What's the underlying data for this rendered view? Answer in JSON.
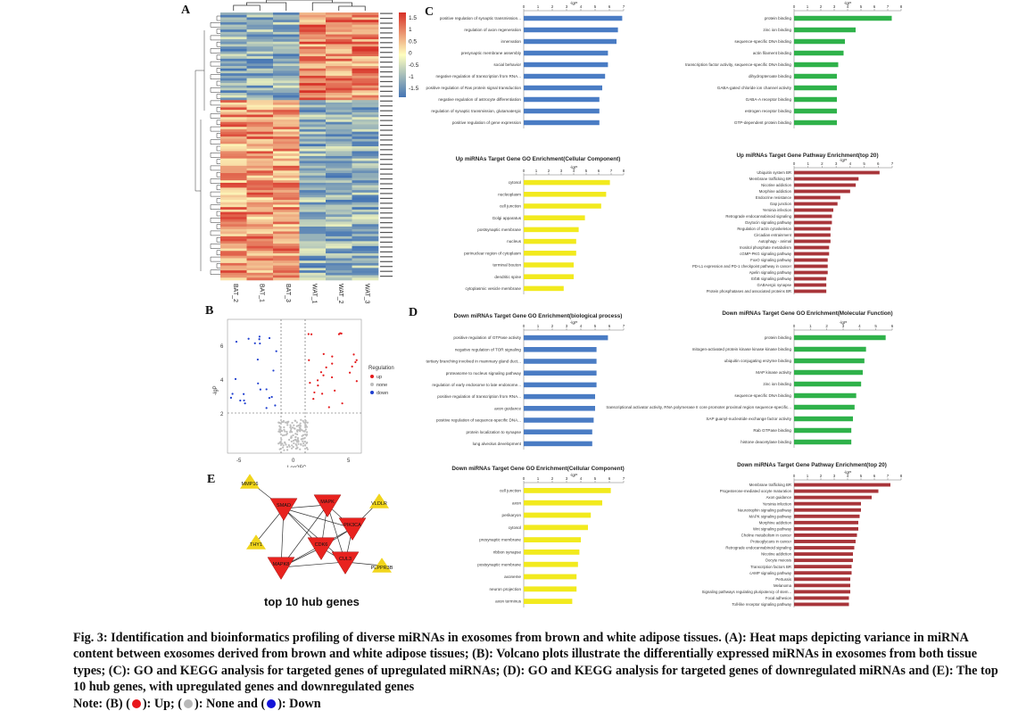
{
  "panels": {
    "A": "A",
    "B": "B",
    "C": "C",
    "D": "D",
    "E": "E"
  },
  "heatmap": {
    "samples": [
      "BAT_2",
      "BAT_1",
      "BAT_3",
      "WAT_1",
      "WAT_2",
      "WAT_3"
    ],
    "legend_ticks": [
      "1.5",
      "1",
      "0.5",
      "0",
      "-0.5",
      "-1",
      "-1.5"
    ],
    "colors": {
      "high": "#d73027",
      "mid": "#ffffbf",
      "low": "#4575b4"
    }
  },
  "volcano": {
    "xlabel": "Log2FC",
    "ylabel": "-lgP",
    "legend_title": "Regulation",
    "legend": [
      {
        "label": "up",
        "color": "#e41a1c"
      },
      {
        "label": "none",
        "color": "#bdbdbd"
      },
      {
        "label": "down",
        "color": "#1f3fcf"
      }
    ],
    "x_ticks": [
      "-5",
      "0",
      "5"
    ],
    "y_ticks": [
      "2",
      "4",
      "6"
    ]
  },
  "chart_data": [
    {
      "type": "bar",
      "orientation": "horizontal",
      "axis_label": "-lgP",
      "title": "",
      "color": "#4a7cc4",
      "xlim": [
        0,
        7
      ],
      "categories": [
        "positive regulation of synaptic transmission...",
        "regulation of axon regeneration",
        "innervation",
        "presynaptic membrane assembly",
        "social behavior",
        "negative regulation of transcription from RNA...",
        "positive regulation of Ras protein signal transduction",
        "negative regulation of astrocyte differentiation",
        "regulation of synaptic transmission, glutamatergic",
        "positive regulation of gene expression"
      ],
      "values": [
        6.9,
        6.6,
        6.5,
        5.9,
        5.9,
        5.7,
        5.5,
        5.3,
        5.3,
        5.3
      ]
    },
    {
      "type": "bar",
      "orientation": "horizontal",
      "axis_label": "-lgP",
      "title": "",
      "color": "#2fb24a",
      "xlim": [
        0,
        8
      ],
      "categories": [
        "protein binding",
        "zinc ion binding",
        "sequence-specific DNA binding",
        "actin filament binding",
        "transcription factor activity, sequence-specific DNA binding",
        "dihydropteroate binding",
        "GABA-gated chloride ion channel activity",
        "GABA-A receptor binding",
        "estrogen receptor binding",
        "GTP-dependent protein binding"
      ],
      "values": [
        7.3,
        4.6,
        3.8,
        3.7,
        3.3,
        3.2,
        3.2,
        3.2,
        3.2,
        3.2
      ]
    },
    {
      "type": "bar",
      "orientation": "horizontal",
      "axis_label": "-lgP",
      "title": "Up miRNAs Target Gene GO Enrichment(Cellular Component)",
      "color": "#f2ea1e",
      "xlim": [
        0,
        8
      ],
      "categories": [
        "cytosol",
        "nucleoplasm",
        "cell junction",
        "Golgi apparatus",
        "postsynaptic membrane",
        "nucleus",
        "perinuclear region of cytoplasm",
        "terminal bouton",
        "dendritic spine",
        "cytoplasmic vesicle membrane"
      ],
      "values": [
        6.9,
        6.6,
        6.2,
        4.9,
        4.4,
        4.2,
        4.2,
        4.0,
        4.0,
        3.2
      ]
    },
    {
      "type": "bar",
      "orientation": "horizontal",
      "axis_label": "-lgP",
      "title": "Up miRNAs Target Gene Pathway Enrichment(top 20)",
      "color": "#a8353a",
      "xlim": [
        0,
        7
      ],
      "categories": [
        "Ubiquitin system BR",
        "Membrane trafficking BR",
        "Nicotine addiction",
        "Morphine addiction",
        "Endocrine resistance",
        "Gap junction",
        "Yersinia infection",
        "Retrograde endocannabinoid signaling",
        "Oxytocin signaling pathway",
        "Regulation of actin cytoskeleton",
        "Circadian entrainment",
        "Autophagy - animal",
        "Inositol phosphate metabolism",
        "cGMP-PKG signaling pathway",
        "FoxO signaling pathway",
        "PD-L1 expression and PD-1 checkpoint pathway in cancer",
        "Apelin signaling pathway",
        "ErbB signaling pathway",
        "GABAergic synapse",
        "Protein phosphatases and associated proteins BR"
      ],
      "values": [
        6.1,
        4.6,
        4.4,
        4.0,
        3.3,
        3.1,
        2.8,
        2.7,
        2.7,
        2.6,
        2.6,
        2.6,
        2.5,
        2.5,
        2.4,
        2.4,
        2.4,
        2.3,
        2.3,
        2.3
      ]
    },
    {
      "type": "bar",
      "orientation": "horizontal",
      "axis_label": "-lgP",
      "title": "Down miRNAs Target Gene GO Enrichment(biological process)",
      "color": "#4a7cc4",
      "xlim": [
        0,
        7
      ],
      "categories": [
        "positive regulation of GTPase activity",
        "negative regulation of TOR signaling",
        "tertiary branching involved in mammary gland duct...",
        "proteasome to nucleus signaling pathway",
        "regulation of early endosome to late endosome...",
        "positive regulation of transcription from RNA...",
        "axon guidance",
        "positive regulation of sequence-specific DNA...",
        "protein localization to synapse",
        "lung alveolus development"
      ],
      "values": [
        5.9,
        5.1,
        5.1,
        5.1,
        5.1,
        5.0,
        5.0,
        4.9,
        4.8,
        4.8
      ]
    },
    {
      "type": "bar",
      "orientation": "horizontal",
      "axis_label": "-lgP",
      "title": "Down miRNAs Target Gene GO Enrichment(Molecular Function)",
      "color": "#2fb24a",
      "xlim": [
        0,
        6
      ],
      "categories": [
        "protein binding",
        "mitogen-activated protein kinase kinase kinase binding",
        "ubiquitin conjugating enzyme binding",
        "MAP kinase activity",
        "zinc ion binding",
        "sequence-specific DNA binding",
        "transcriptional activator activity, RNA polymerase II core promoter proximal region sequence-specific...",
        "SAP guanyl-nucleotide exchange factor activity",
        "Rab GTPase binding",
        "histone deacetylase binding"
      ],
      "values": [
        5.6,
        4.4,
        4.3,
        4.2,
        4.1,
        3.8,
        3.7,
        3.6,
        3.5,
        3.5
      ]
    },
    {
      "type": "bar",
      "orientation": "horizontal",
      "axis_label": "-lgP",
      "title": "Down miRNAs Target Gene GO Enrichment(Cellular Component)",
      "color": "#f2ea1e",
      "xlim": [
        0,
        7
      ],
      "categories": [
        "cell junction",
        "axon",
        "perikaryon",
        "cytosol",
        "presynaptic membrane",
        "ribbon synapse",
        "postsynaptic membrane",
        "axoneme",
        "neuron projection",
        "axon terminus"
      ],
      "values": [
        6.1,
        5.5,
        4.7,
        4.5,
        4.0,
        3.9,
        3.8,
        3.7,
        3.7,
        3.4
      ]
    },
    {
      "type": "bar",
      "orientation": "horizontal",
      "axis_label": "-lgP",
      "title": "Down miRNAs Target Gene Pathway Enrichment(top 20)",
      "color": "#a8353a",
      "xlim": [
        0,
        8
      ],
      "categories": [
        "Membrane trafficking BR",
        "Progesterone-mediated oocyte maturation",
        "Axon guidance",
        "Yersinia infection",
        "Neurotrophin signaling pathway",
        "MAPK signaling pathway",
        "Morphine addiction",
        "Wnt signaling pathway",
        "Choline metabolism in cancer",
        "Proteoglycans in cancer",
        "Retrograde endocannabinoid signaling",
        "Nicotine addiction",
        "Oocyte meiosis",
        "Transcription factors BR",
        "cAMP signaling pathway",
        "Pertussis",
        "Melanoma",
        "Signaling pathways regulating pluripotency of stem...",
        "Focal adhesion",
        "Toll-like receptor signaling pathway"
      ],
      "values": [
        7.2,
        6.3,
        5.8,
        5.0,
        5.0,
        4.9,
        4.8,
        4.8,
        4.7,
        4.6,
        4.5,
        4.4,
        4.4,
        4.3,
        4.3,
        4.2,
        4.2,
        4.2,
        4.1,
        4.1
      ]
    }
  ],
  "hub_network": {
    "title": "top 10 hub genes",
    "up_color": "#e8231f",
    "down_color": "#f1d51c",
    "nodes": [
      {
        "label": "MMP16",
        "reg": "down"
      },
      {
        "label": "VLDLR",
        "reg": "down"
      },
      {
        "label": "THY1",
        "reg": "down"
      },
      {
        "label": "PLPPR3B",
        "reg": "down"
      },
      {
        "label": "SMAD",
        "reg": "up"
      },
      {
        "label": "MAPK",
        "reg": "up"
      },
      {
        "label": "PIK3CA",
        "reg": "up"
      },
      {
        "label": "CDK6",
        "reg": "up"
      },
      {
        "label": "MAPK8",
        "reg": "up"
      },
      {
        "label": "CUL3",
        "reg": "up"
      }
    ]
  },
  "caption": {
    "main": "Fig. 3: Identification and bioinformatics profiling of diverse miRNAs in exosomes from brown and white adipose tissues. (A): Heat maps depicting variance in miRNA content between exosomes derived from brown and white adipose tissues; (B): Volcano plots illustrate the differentially expressed miRNAs in exosomes from both tissue types; (C): GO and KEGG analysis for targeted genes of upregulated miRNAs; (D): GO and KEGG analysis for targeted genes of downregulated miRNAs and (E): The top 10 hub genes, with upregulated genes and downregulated genes",
    "note_prefix": "Note: (B) (",
    "note_up": "): Up; (",
    "note_none": "): None and (",
    "note_down": "): Down",
    "up_color": "#e8161b",
    "none_color": "#b8b8b8",
    "down_color": "#1414d8"
  }
}
